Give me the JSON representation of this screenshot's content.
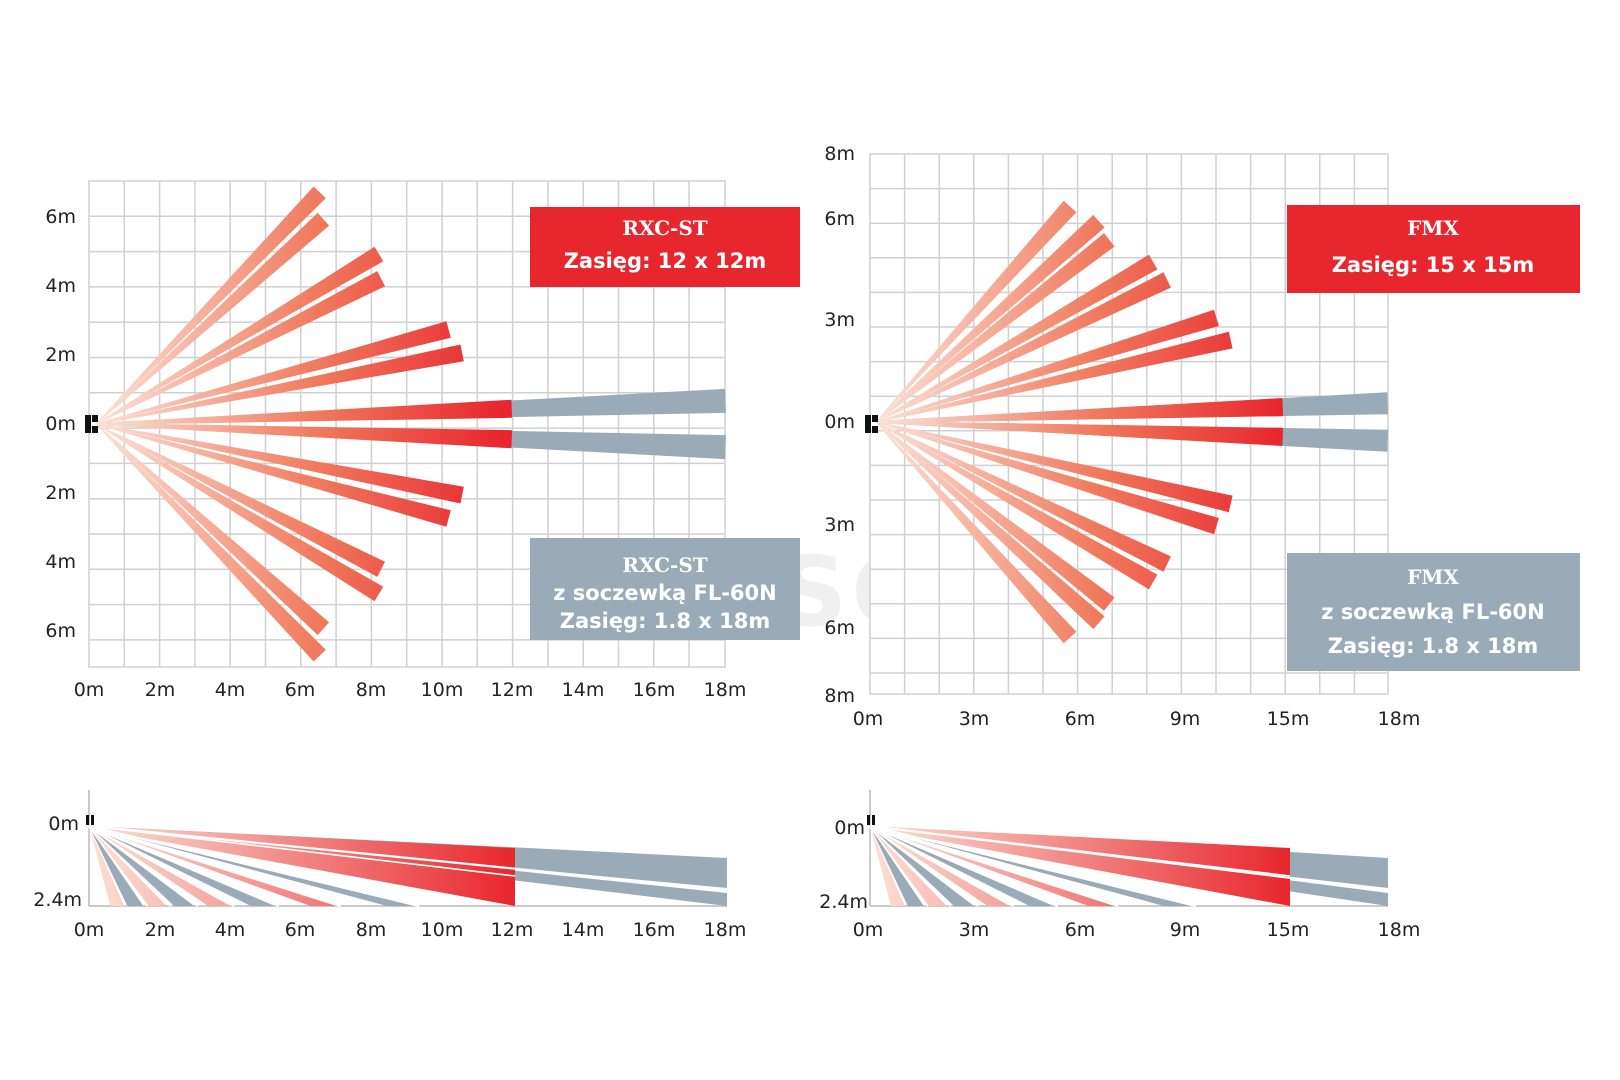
{
  "watermark": "PLUSCOM",
  "colors": {
    "red": "#e8262d",
    "red_light": "#f8d7cc",
    "gray": "#9aabb7",
    "grid": "#d0d0d0"
  },
  "detectors": [
    {
      "id": "rxc",
      "model": "RXC-ST",
      "range_label": "Zasięg:  12 x 12m",
      "lens_model": "RXC-ST",
      "lens_text": "z soczewką FL-60N",
      "lens_range": "Zasięg: 1.8 x 18m",
      "y_ticks": [
        "6m",
        "4m",
        "2m",
        "0m",
        "2m",
        "4m",
        "6m"
      ],
      "x_ticks": [
        "0m",
        "2m",
        "4m",
        "6m",
        "8m",
        "10m",
        "12m",
        "14m",
        "16m",
        "18m"
      ],
      "side_y_ticks": [
        "0m",
        "2.4m"
      ],
      "side_x_ticks": [
        "0m",
        "2m",
        "4m",
        "6m",
        "8m",
        "10m",
        "12m",
        "14m",
        "16m",
        "18m"
      ]
    },
    {
      "id": "fmx",
      "model": "FMX",
      "range_label": "Zasięg: 15 x 15m",
      "lens_model": "FMX",
      "lens_text": "z soczewką FL-60N",
      "lens_range": "Zasięg: 1.8 x 18m",
      "y_ticks": [
        "8m",
        "6m",
        "3m",
        "0m",
        "3m",
        "6m",
        "8m"
      ],
      "x_ticks": [
        "0m",
        "3m",
        "6m",
        "9m",
        "15m",
        "18m"
      ],
      "side_y_ticks": [
        "0m",
        "2.4m"
      ],
      "side_x_ticks": [
        "0m",
        "3m",
        "6m",
        "9m",
        "15m",
        "18m"
      ]
    }
  ]
}
